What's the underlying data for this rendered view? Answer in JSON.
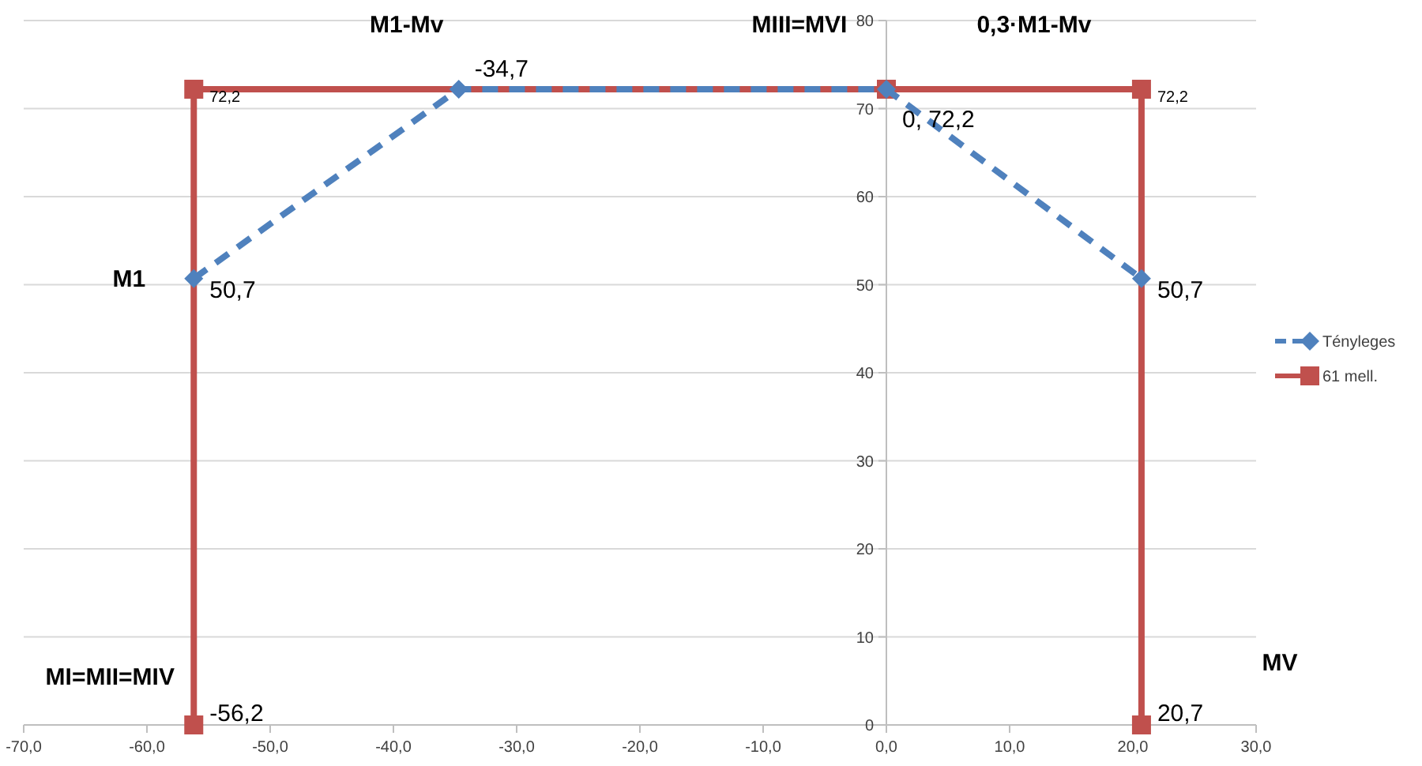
{
  "chart_data": {
    "type": "line",
    "xlim": [
      -70,
      30
    ],
    "ylim": [
      0,
      80
    ],
    "xticks": [
      {
        "value": -70,
        "label": "-70,0"
      },
      {
        "value": -60,
        "label": "-60,0"
      },
      {
        "value": -50,
        "label": "-50,0"
      },
      {
        "value": -40,
        "label": "-40,0"
      },
      {
        "value": -30,
        "label": "-30,0"
      },
      {
        "value": -20,
        "label": "-20,0"
      },
      {
        "value": -10,
        "label": "-10,0"
      },
      {
        "value": 0,
        "label": "0,0"
      },
      {
        "value": 10,
        "label": "10,0"
      },
      {
        "value": 20,
        "label": "20,0"
      },
      {
        "value": 30,
        "label": "30,0"
      }
    ],
    "yticks": [
      0,
      10,
      20,
      30,
      40,
      50,
      60,
      70,
      80
    ],
    "grid": "y",
    "legend": "right",
    "series": [
      {
        "name": "Tényleges",
        "color": "#4f81bd",
        "line_style": "dashed",
        "marker": "diamond",
        "x": [
          -56.2,
          -34.7,
          0,
          20.7
        ],
        "values": [
          50.7,
          72.2,
          72.2,
          50.7
        ],
        "value_labels": [
          "50,7",
          null,
          null,
          "50,7"
        ]
      },
      {
        "name": "61 mell.",
        "color": "#c0504d",
        "line_style": "solid",
        "marker": "square",
        "x": [
          -56.2,
          -56.2,
          0,
          20.7,
          20.7
        ],
        "values": [
          0,
          72.2,
          72.2,
          72.2,
          0
        ],
        "value_labels": [
          null,
          "72,2",
          "0, 72,2",
          "72,2",
          null
        ]
      }
    ],
    "annotations": [
      {
        "text": "M1",
        "x": -56.2,
        "y": 50.7
      },
      {
        "text": "M1-Mv",
        "x": -34.7,
        "y": 72.2
      },
      {
        "text": "MIII=MVI",
        "x": 0,
        "y": 72.2
      },
      {
        "text": "0,3·M1-Mv",
        "x": 20.7,
        "y": 72.2
      },
      {
        "text": "MI=MII=MIV",
        "x": -56.2,
        "y": 0
      },
      "MV",
      {
        "text": "-34,7",
        "x": -34.7,
        "y": 72.2
      },
      {
        "text": "-56,2",
        "x": -56.2,
        "y": 0
      },
      {
        "text": "20,7",
        "x": 20.7,
        "y": 0
      }
    ]
  }
}
